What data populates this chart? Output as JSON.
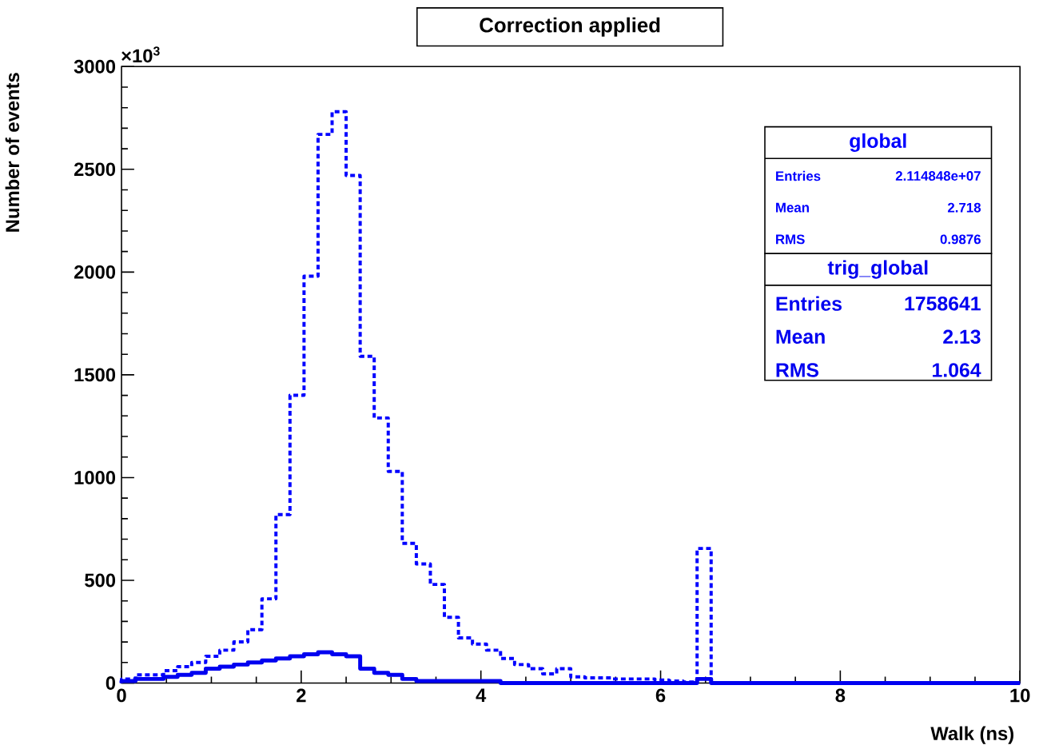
{
  "chart_data": {
    "type": "histogram",
    "title": "Correction applied",
    "xlabel": "Walk (ns)",
    "ylabel": "Number of events",
    "bins": [
      0,
      0.15625,
      0.3125,
      0.46875,
      0.625,
      0.78125,
      0.9375,
      1.09375,
      1.25,
      1.40625,
      1.5625,
      1.71875,
      1.875,
      2.03125,
      2.1875,
      2.34375,
      2.5,
      2.65625,
      2.8125,
      2.96875,
      3.125,
      3.28125,
      3.4375,
      3.59375,
      3.75,
      3.90625,
      4.0625,
      4.21875,
      4.375,
      4.53125,
      4.6875,
      4.84375,
      5,
      5.15625,
      5.3125,
      5.46875,
      5.625,
      5.78125,
      5.9375,
      6.09375,
      6.25,
      6.40625,
      6.5625,
      6.71875,
      6.875,
      7.03125,
      7.1875,
      7.34375,
      7.5,
      7.65625,
      7.8125,
      7.96875,
      8.125,
      8.28125,
      8.4375,
      8.59375,
      8.75,
      8.90625,
      9.0625,
      9.21875,
      9.375,
      9.53125,
      9.6875,
      9.84375,
      10
    ],
    "series": [
      {
        "name": "global",
        "color": "#0000ff",
        "line_style": "dashed",
        "values": [
          20,
          40,
          40,
          60,
          80,
          100,
          130,
          160,
          200,
          260,
          410,
          820,
          1400,
          1980,
          2670,
          2780,
          2470,
          1590,
          1290,
          1030,
          680,
          580,
          480,
          320,
          220,
          190,
          160,
          120,
          90,
          70,
          45,
          70,
          30,
          25,
          25,
          20,
          20,
          20,
          15,
          10,
          5,
          655,
          0,
          0,
          0,
          0,
          0,
          0,
          0,
          0,
          0,
          0,
          0,
          0,
          0,
          0,
          0,
          0,
          0,
          0,
          0,
          0,
          0,
          0
        ]
      },
      {
        "name": "trig_global",
        "color": "#0000f0",
        "line_style": "solid",
        "values": [
          10,
          20,
          20,
          30,
          40,
          50,
          70,
          80,
          90,
          100,
          110,
          120,
          130,
          140,
          150,
          140,
          130,
          70,
          50,
          40,
          20,
          10,
          10,
          10,
          10,
          10,
          10,
          0,
          0,
          0,
          0,
          0,
          0,
          0,
          0,
          0,
          0,
          0,
          0,
          0,
          0,
          20,
          0,
          0,
          0,
          0,
          0,
          0,
          0,
          0,
          0,
          0,
          0,
          0,
          0,
          0,
          0,
          0,
          0,
          0,
          0,
          0,
          0,
          0
        ]
      }
    ],
    "xlim": [
      0,
      10
    ],
    "xticks": [
      0,
      2,
      4,
      6,
      8,
      10
    ],
    "ylim": [
      0,
      3000
    ],
    "yticks": [
      0,
      500,
      1000,
      1500,
      2000,
      2500,
      3000
    ],
    "annotations": [
      "×10$^{3}$",
      "Entries",
      "2.114848e+07",
      "Mean",
      "2.718",
      "RMS",
      "0.9876",
      "Entries",
      "1758641",
      "Mean",
      "2.13",
      "RMS",
      "1.064"
    ]
  }
}
